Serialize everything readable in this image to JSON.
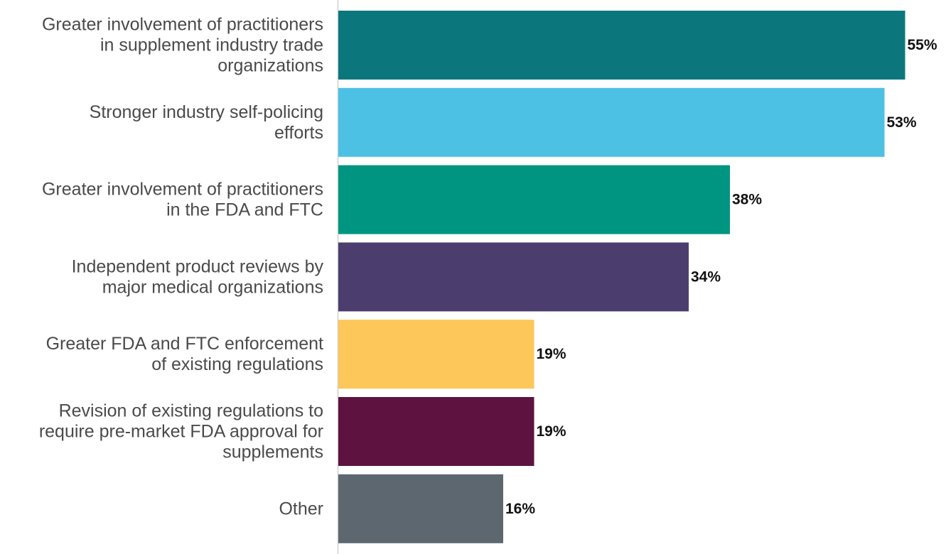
{
  "chart_data": {
    "type": "bar",
    "orientation": "horizontal",
    "categories": [
      "Greater involvement of practitioners in supplement industry trade organizations",
      "Stronger industry self-policing efforts",
      "Greater involvement of practitioners in the FDA and FTC",
      "Independent product reviews by major medical organizations",
      "Greater FDA and FTC enforcement of existing regulations",
      "Revision of existing regulations to require pre-market FDA approval for supplements",
      "Other"
    ],
    "category_lines": [
      [
        "Greater involvement of practitioners",
        "in supplement industry trade",
        "organizations"
      ],
      [
        "Stronger industry self-policing",
        "efforts"
      ],
      [
        "Greater involvement of practitioners",
        "in the FDA and FTC"
      ],
      [
        "Independent product reviews by",
        "major medical organizations"
      ],
      [
        "Greater FDA and FTC enforcement",
        "of existing regulations"
      ],
      [
        "Revision of existing regulations to",
        "require pre-market FDA approval for",
        "supplements"
      ],
      [
        "Other"
      ]
    ],
    "values": [
      55,
      53,
      38,
      34,
      19,
      19,
      16
    ],
    "value_labels": [
      "55%",
      "53%",
      "38%",
      "34%",
      "19%",
      "19%",
      "16%"
    ],
    "colors": [
      "#0c767d",
      "#4dc1e3",
      "#009581",
      "#4b3e6e",
      "#fdc759",
      "#5e123f",
      "#5d6770"
    ],
    "title": "",
    "xlabel": "",
    "ylabel": "",
    "xlim": [
      0,
      55
    ],
    "grid": false,
    "legend": "none"
  }
}
